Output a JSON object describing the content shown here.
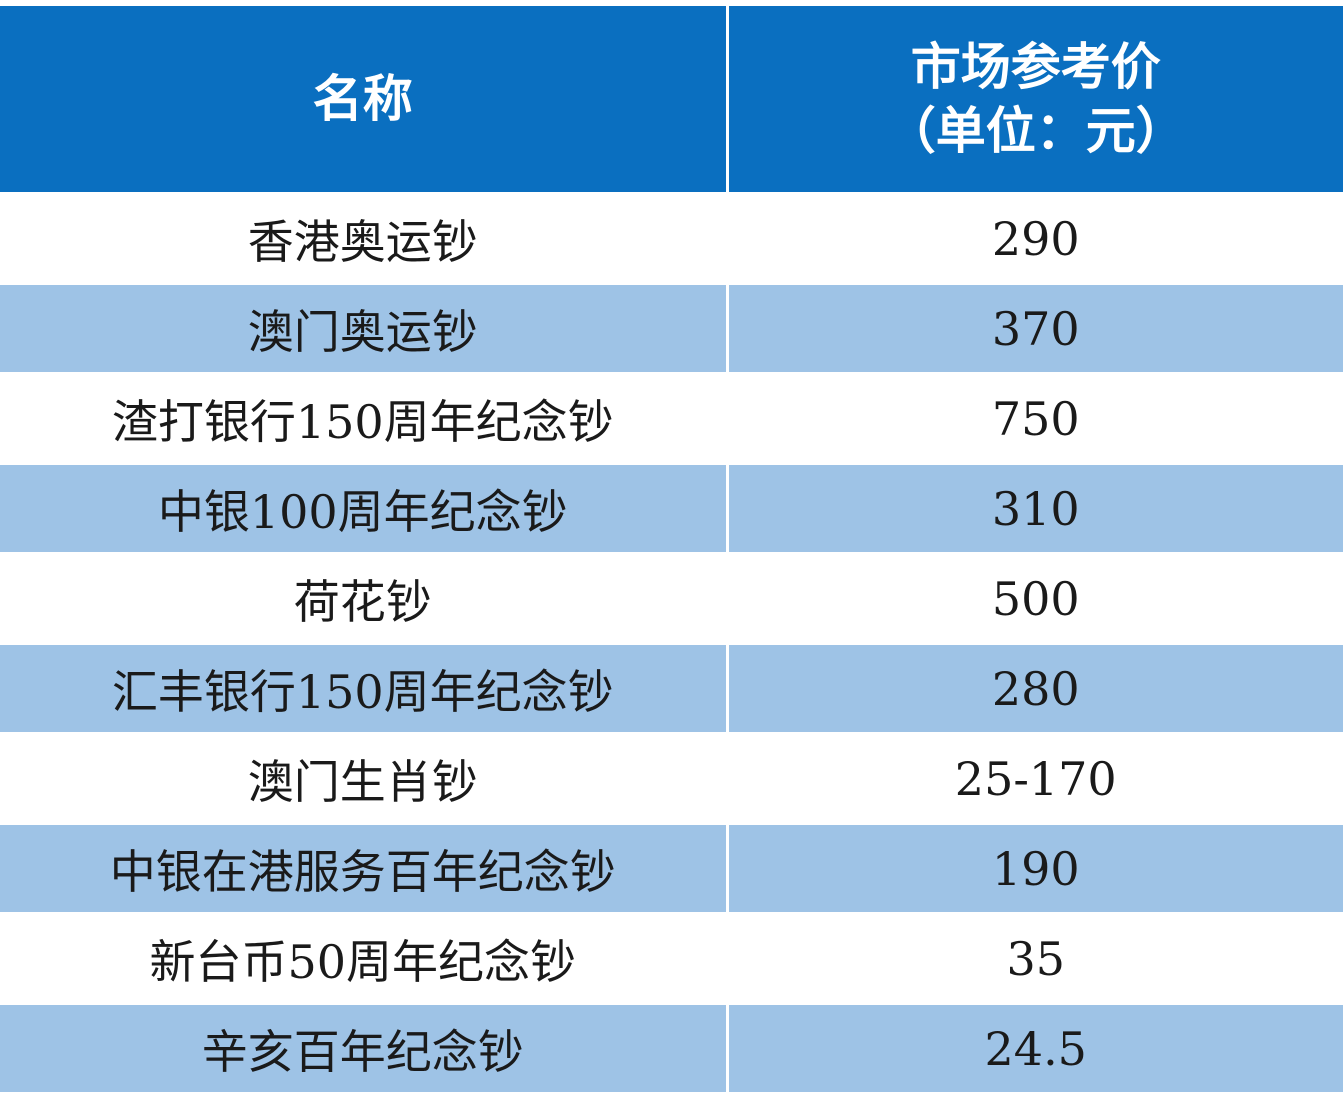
{
  "header": {
    "name": "名称",
    "price_line1": "市场参考价",
    "price_line2": "（单位：元）"
  },
  "rows": [
    {
      "name": "香港奥运钞",
      "price": "290"
    },
    {
      "name": "澳门奥运钞",
      "price": "370"
    },
    {
      "name": "渣打银行150周年纪念钞",
      "price": "750"
    },
    {
      "name": "中银100周年纪念钞",
      "price": "310"
    },
    {
      "name": "荷花钞",
      "price": "500"
    },
    {
      "name": "汇丰银行150周年纪念钞",
      "price": "280"
    },
    {
      "name": "澳门生肖钞",
      "price": "25-170"
    },
    {
      "name": "中银在港服务百年纪念钞",
      "price": "190"
    },
    {
      "name": "新台币50周年纪念钞",
      "price": "35"
    },
    {
      "name": "辛亥百年纪念钞",
      "price": "24.5"
    }
  ],
  "colors": {
    "header_bg": "#0a6fc0",
    "stripe_bg": "#9ec3e6",
    "plain_bg": "#ffffff"
  }
}
